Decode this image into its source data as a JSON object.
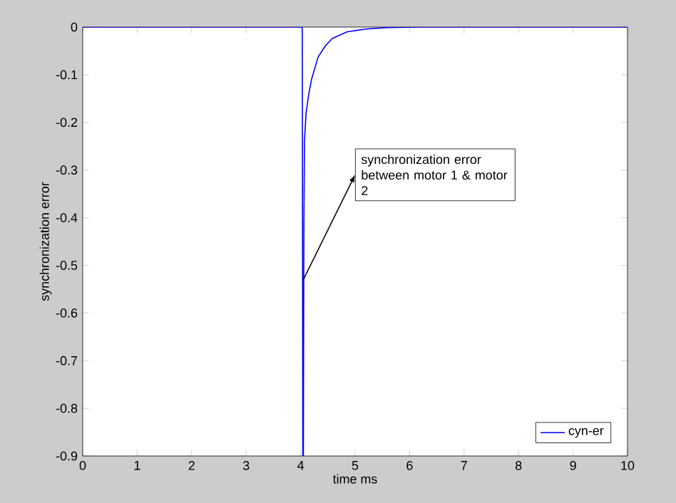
{
  "chart_data": {
    "type": "line",
    "xlabel": "time ms",
    "ylabel": "synchronization error",
    "x": [
      0,
      4.03,
      4.04,
      4.05,
      4.06,
      4.07,
      4.1,
      4.15,
      4.2,
      4.32,
      4.45,
      4.58,
      4.85,
      5.2,
      5.6,
      6.2,
      10
    ],
    "series": [
      {
        "name": "cyn-er",
        "color": "#0000ff",
        "values": [
          0,
          0,
          -0.9,
          -0.9,
          -0.42,
          -0.24,
          -0.18,
          -0.14,
          -0.11,
          -0.063,
          -0.04,
          -0.024,
          -0.01,
          -0.004,
          -0.001,
          0,
          0
        ]
      }
    ],
    "xlim": [
      0,
      10
    ],
    "ylim": [
      -0.9,
      0
    ],
    "xticks": [
      0,
      1,
      2,
      3,
      4,
      5,
      6,
      7,
      8,
      9,
      10
    ],
    "yticks": [
      {
        "value": -0.9,
        "label": "-0.9"
      },
      {
        "value": -0.8,
        "label": "-0.8"
      },
      {
        "value": -0.7,
        "label": "-0.7"
      },
      {
        "value": -0.6,
        "label": "-0.6"
      },
      {
        "value": -0.5,
        "label": "-0.5"
      },
      {
        "value": -0.4,
        "label": "-0.4"
      },
      {
        "value": -0.3,
        "label": "-0.3"
      },
      {
        "value": -0.2,
        "label": "-0.2"
      },
      {
        "value": -0.1,
        "label": "-0.1"
      },
      0
    ],
    "annotations": [
      {
        "text": "synchronization error between motor 1 & motor 2",
        "x": 4.05,
        "y": -0.53
      }
    ],
    "legend": "bottom right",
    "grid": false,
    "marker": "none",
    "line_style": "solid"
  }
}
